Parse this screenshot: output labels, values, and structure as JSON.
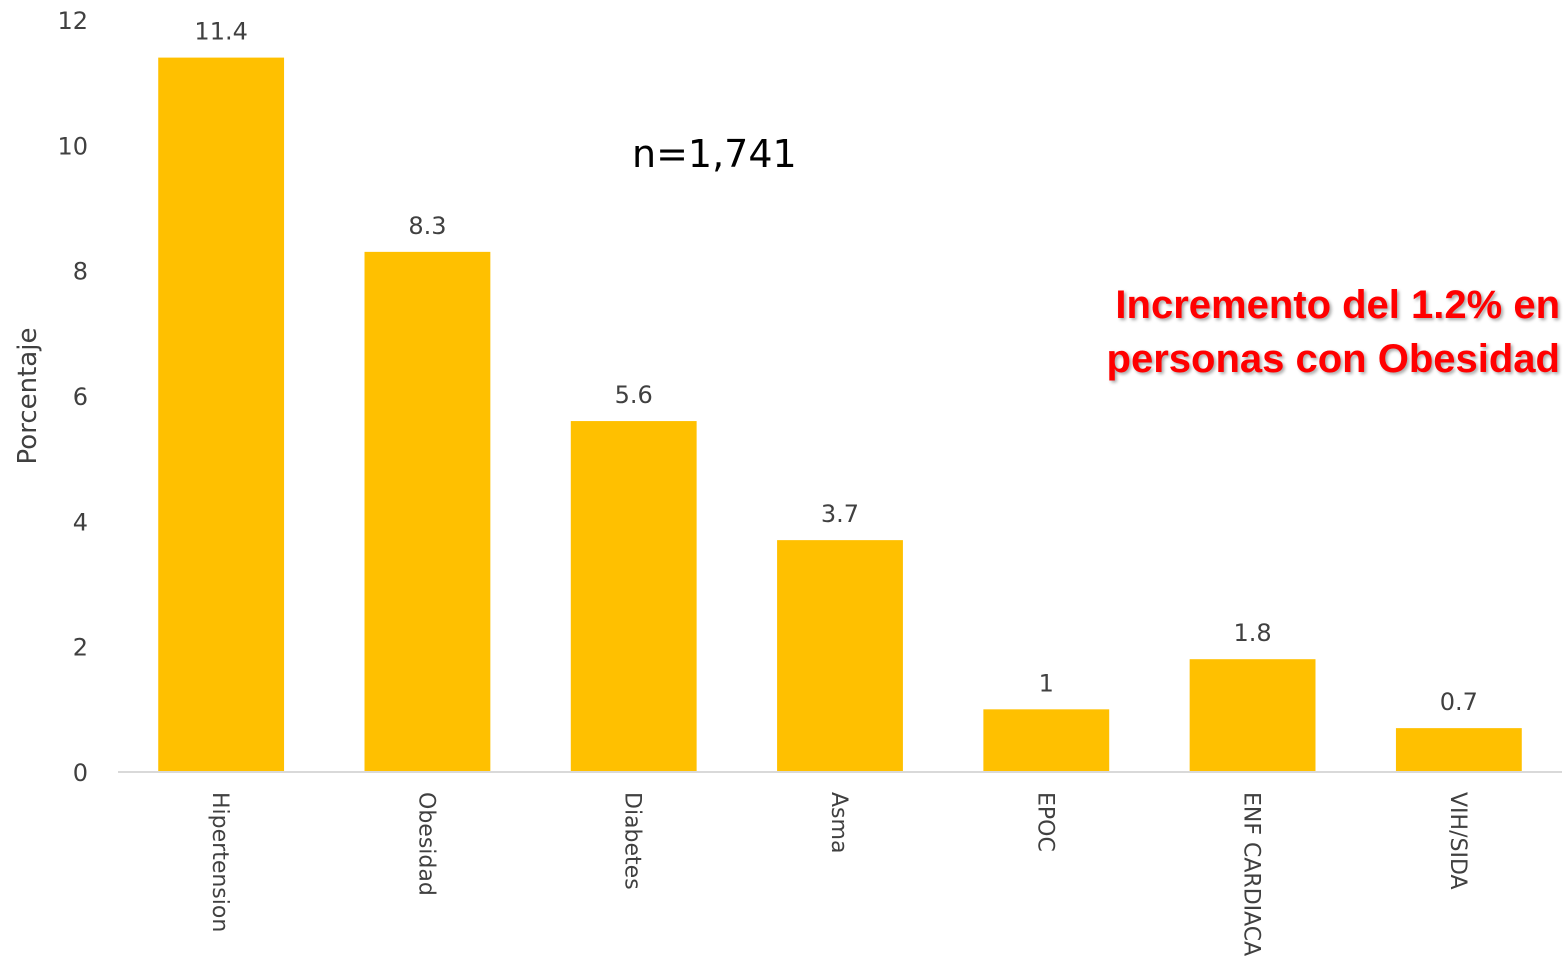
{
  "chart_data": {
    "type": "bar",
    "categories": [
      "Hipertension",
      "Obesidad",
      "Diabetes",
      "Asma",
      "EPOC",
      "ENF CARDIACA",
      "VIH/SIDA"
    ],
    "values": [
      11.4,
      8.3,
      5.6,
      3.7,
      1,
      1.8,
      0.7
    ],
    "data_labels": [
      "11.4",
      "8.3",
      "5.6",
      "3.7",
      "1",
      "1.8",
      "0.7"
    ],
    "ylabel": "Porcentaje",
    "xlabel": "",
    "ylim": [
      0,
      12
    ],
    "yticks": [
      0,
      2,
      4,
      6,
      8,
      10,
      12
    ],
    "grid": false,
    "bar_color": "#FFC000",
    "annotations": {
      "n_note": "n=1,741",
      "highlight_line1": "Incremento del 1.2% en",
      "highlight_line2": "personas con Obesidad",
      "highlight_color": "#FF0000"
    }
  }
}
